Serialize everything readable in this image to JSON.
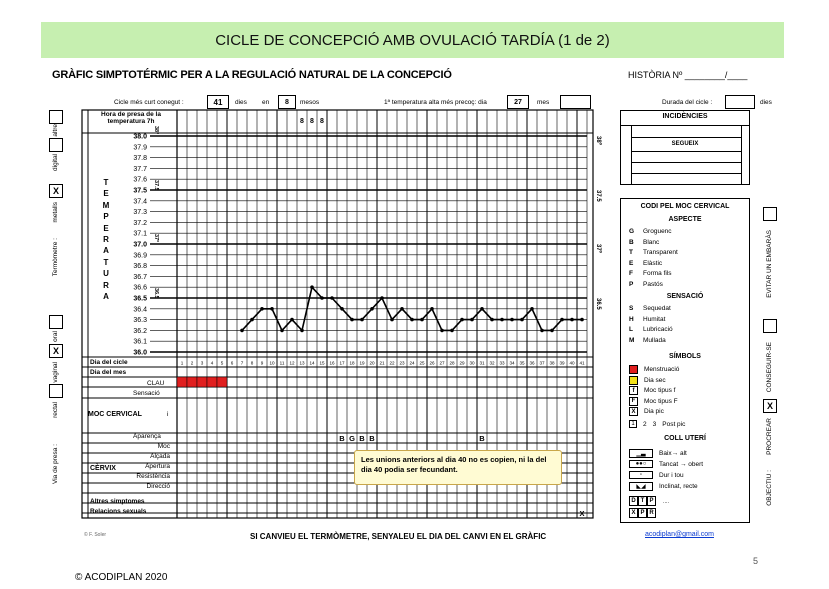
{
  "banner_title": "CICLE DE CONCEPCIÓ AMB OVULACIÓ TARDÍA (1 de 2)",
  "subtitle": "GRÀFIC SIMPTOTÉRMIC PER A LA REGULACIÓ NATURAL DE LA CONCEPCIÓ",
  "historia": "HISTÒRIA Nº ________/____",
  "top_row": {
    "cicle_label": "Cicle més curt conegut :",
    "cicle_value": "41",
    "dies": "dies",
    "en": "en",
    "mesos_value": "8",
    "mesos": "mesos",
    "temp_label": "1ª temperatura alta més precoç: dia",
    "temp_value": "27",
    "mes": "mes",
    "durada": "Durada del cicle :",
    "durada_dies": "dies"
  },
  "left_rows": {
    "hora": "Hora de presa de la temperatura 7h",
    "hora_marks": [
      "8",
      "8",
      "8"
    ],
    "temperatura_letters": [
      "T",
      "E",
      "M",
      "P",
      "E",
      "R",
      "A",
      "T",
      "U",
      "R",
      "A"
    ],
    "dia_cicle": "Dia del cicle",
    "dia_mes": "Dia del mes",
    "clau": "CLAU",
    "sensacio": "Sensació",
    "moc": "MOC CERVICAL",
    "moc_i": "i",
    "aparenca": "Aparença",
    "cervix": "CÈRVIX",
    "cervix_rows": [
      "Moc",
      "Alçada",
      "Apertura",
      "Resistència",
      "Direcció"
    ],
    "altres": "Altres simptomes",
    "relacions": "Relacions sexuals"
  },
  "temp_scale": [
    "38.0",
    "37.9",
    "37.8",
    "37.7",
    "37.6",
    "37.5",
    "37.4",
    "37.3",
    "37.2",
    "37.1",
    "37.0",
    "36.9",
    "36.8",
    "36.7",
    "36.6",
    "36.5",
    "36.4",
    "36.3",
    "36.2",
    "36.1",
    "36.0"
  ],
  "temp_bold": [
    "38.0",
    "37.5",
    "37.0",
    "36.5",
    "36.0"
  ],
  "right_temp_marks": [
    "38º",
    "37.5",
    "37º",
    "36.5"
  ],
  "side_labels": {
    "altre": "altre",
    "digital": "digital",
    "metalls": "metalls",
    "termometre": "Termòmetre :",
    "oral": "oral",
    "vaginal": "vaginal",
    "rectal": "rectal",
    "via": "Via de presa :",
    "evitar": "EVITAR UN EMBARÀS",
    "conseguir": "CONSEGUIR-SE",
    "procrear": "PROCREAR",
    "objectiu": "OBJECTIU :",
    "x": "X"
  },
  "temperatures": [
    {
      "day": 7,
      "temp": 36.2
    },
    {
      "day": 8,
      "temp": 36.3
    },
    {
      "day": 9,
      "temp": 36.4
    },
    {
      "day": 10,
      "temp": 36.4
    },
    {
      "day": 11,
      "temp": 36.2
    },
    {
      "day": 12,
      "temp": 36.3
    },
    {
      "day": 13,
      "temp": 36.2
    },
    {
      "day": 14,
      "temp": 36.6
    },
    {
      "day": 15,
      "temp": 36.5
    },
    {
      "day": 16,
      "temp": 36.5
    },
    {
      "day": 17,
      "temp": 36.4
    },
    {
      "day": 18,
      "temp": 36.3
    },
    {
      "day": 19,
      "temp": 36.3
    },
    {
      "day": 20,
      "temp": 36.4
    },
    {
      "day": 21,
      "temp": 36.5
    },
    {
      "day": 22,
      "temp": 36.3
    },
    {
      "day": 23,
      "temp": 36.4
    },
    {
      "day": 24,
      "temp": 36.3
    },
    {
      "day": 25,
      "temp": 36.3
    },
    {
      "day": 26,
      "temp": 36.4
    },
    {
      "day": 27,
      "temp": 36.2
    },
    {
      "day": 28,
      "temp": 36.2
    },
    {
      "day": 29,
      "temp": 36.3
    },
    {
      "day": 30,
      "temp": 36.3
    },
    {
      "day": 31,
      "temp": 36.4
    },
    {
      "day": 32,
      "temp": 36.3
    },
    {
      "day": 33,
      "temp": 36.3
    },
    {
      "day": 34,
      "temp": 36.3
    },
    {
      "day": 35,
      "temp": 36.3
    },
    {
      "day": 36,
      "temp": 36.4
    },
    {
      "day": 37,
      "temp": 36.2
    },
    {
      "day": 38,
      "temp": 36.2
    },
    {
      "day": 39,
      "temp": 36.3
    },
    {
      "day": 40,
      "temp": 36.3
    },
    {
      "day": 41,
      "temp": 36.3
    }
  ],
  "menstruation_days": [
    1,
    2,
    3,
    4,
    5
  ],
  "aparenca_marks": [
    {
      "day": 17,
      "mark": "B"
    },
    {
      "day": 18,
      "mark": "G"
    },
    {
      "day": 19,
      "mark": "B"
    },
    {
      "day": 20,
      "mark": "B"
    },
    {
      "day": 31,
      "mark": "B"
    }
  ],
  "relacions_mark": {
    "day": 41,
    "mark": "X"
  },
  "incidencies": "INCIDÈNCIES",
  "segueix": "SEGUEIX",
  "legend": {
    "title": "CODI PEL MOC CERVICAL",
    "aspecte": "ASPECTE",
    "aspecte_items": [
      [
        "G",
        "Groguenc"
      ],
      [
        "B",
        "Blanc"
      ],
      [
        "T",
        "Transparent"
      ],
      [
        "E",
        "Elàstic"
      ],
      [
        "F",
        "Forma fils"
      ],
      [
        "P",
        "Pastós"
      ]
    ],
    "sensacio": "SENSACIÓ",
    "sensacio_items": [
      [
        "S",
        "Sequedat"
      ],
      [
        "H",
        "Humitat"
      ],
      [
        "L",
        "Lubricació"
      ],
      [
        "M",
        "Mullada"
      ]
    ],
    "simbols": "SÍMBOLS",
    "simbols_items": [
      "Menstruació",
      "Dia sec",
      "Moc tipus f",
      "Moc tipus F",
      "Dia pic"
    ],
    "simbols_marks": [
      "f",
      "F",
      "X"
    ],
    "post_pic_digits": [
      "1",
      "2",
      "3"
    ],
    "post_pic": "Post pic",
    "coll": "COLL UTERÍ",
    "coll_items": [
      "Baix→ alt",
      "Tancat → obert",
      "Dur i tou",
      "Inclinat, recte"
    ],
    "coll_letters_1": [
      "D",
      "T",
      "P"
    ],
    "coll_letters_2": [
      "X",
      "P",
      "R"
    ],
    "coll_dots": "...."
  },
  "note": "Les unions anteriors al dia 40 no es copien, ni la del dia 40 podia ser fecundant.",
  "footer": "SI CANVIEU EL TERMÒMETRE, SENYALEU EL DIA DEL CANVI EN EL GRÀFIC",
  "email": "acodiplan@gmail.com",
  "credit": "© F. Soler",
  "copyright": "© ACODIPLAN 2020",
  "page_number": "5",
  "colors": {
    "banner": "#c6efb0",
    "menstruation": "#e01f1f",
    "dry_day": "#f2e11a",
    "line": "#000000"
  }
}
